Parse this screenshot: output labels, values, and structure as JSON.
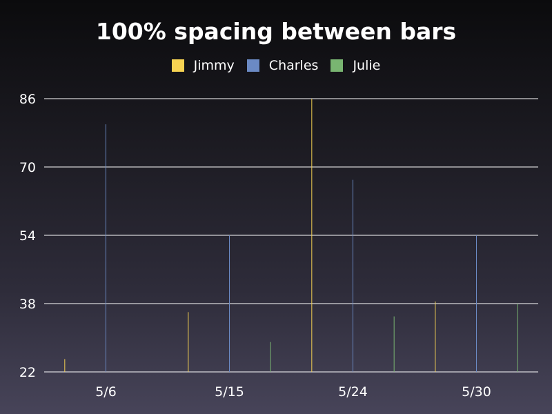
{
  "chart_data": {
    "type": "bar",
    "title": "100% spacing between bars",
    "categories": [
      "5/6",
      "5/15",
      "5/24",
      "5/30"
    ],
    "series": [
      {
        "name": "Jimmy",
        "color": "#f7d352",
        "values": [
          25,
          36,
          86,
          38.5
        ]
      },
      {
        "name": "Charles",
        "color": "#6b8ac4",
        "values": [
          80,
          54,
          67,
          54
        ]
      },
      {
        "name": "Julie",
        "color": "#79b571",
        "values": [
          22,
          29,
          35,
          38
        ]
      }
    ],
    "yticks": [
      22,
      38,
      54,
      70,
      86
    ],
    "ylim": [
      22,
      86
    ],
    "grid": true,
    "legend_position": "top-center"
  }
}
